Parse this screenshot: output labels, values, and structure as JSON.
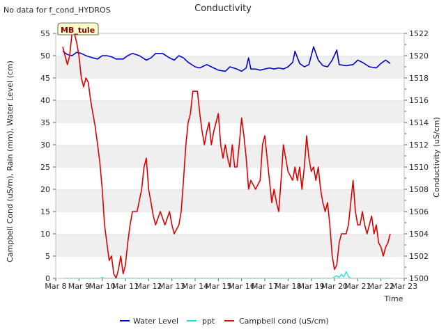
{
  "chart_data": {
    "type": "line",
    "title": "Conductivity",
    "no_data_note": "No data for f_cond_HYDROS",
    "site_badge": "MB_tule",
    "xlabel": "Time",
    "ylabel_left": "Campbell Cond (uS/m), Rain (mm), Water Level (cm)",
    "ylabel_right": "Conductivity (uS/cm)",
    "x_range": [
      8,
      23
    ],
    "x_ticks": [
      {
        "v": 8,
        "label": "Mar 8"
      },
      {
        "v": 9,
        "label": "Mar 9"
      },
      {
        "v": 10,
        "label": "Mar 10"
      },
      {
        "v": 11,
        "label": "Mar 11"
      },
      {
        "v": 12,
        "label": "Mar 12"
      },
      {
        "v": 13,
        "label": "Mar 13"
      },
      {
        "v": 14,
        "label": "Mar 14"
      },
      {
        "v": 15,
        "label": "Mar 15"
      },
      {
        "v": 16,
        "label": "Mar 16"
      },
      {
        "v": 17,
        "label": "Mar 17"
      },
      {
        "v": 18,
        "label": "Mar 18"
      },
      {
        "v": 19,
        "label": "Mar 19"
      },
      {
        "v": 20,
        "label": "Mar 20"
      },
      {
        "v": 21,
        "label": "Mar 21"
      },
      {
        "v": 22,
        "label": "Mar 22"
      },
      {
        "v": 23,
        "label": "Mar 23"
      }
    ],
    "ylim_left": [
      0,
      55
    ],
    "y_ticks_left": [
      0,
      5,
      10,
      15,
      20,
      25,
      30,
      35,
      40,
      45,
      50,
      55
    ],
    "ylim_right": [
      1500,
      1522
    ],
    "y_ticks_right": [
      1500,
      1502,
      1504,
      1506,
      1508,
      1510,
      1512,
      1514,
      1516,
      1518,
      1520,
      1522
    ],
    "grid": "horizontal bands",
    "legend_position": "bottom-center",
    "series": [
      {
        "name": "Water Level",
        "color": "#0000cc",
        "axis": "right",
        "points": [
          [
            8.3,
            1520.4
          ],
          [
            8.5,
            1520.1
          ],
          [
            8.7,
            1520.0
          ],
          [
            8.9,
            1520.3
          ],
          [
            9.1,
            1520.2
          ],
          [
            9.3,
            1520.0
          ],
          [
            9.6,
            1519.8
          ],
          [
            9.8,
            1519.7
          ],
          [
            10.0,
            1520.0
          ],
          [
            10.2,
            1520.0
          ],
          [
            10.4,
            1519.9
          ],
          [
            10.6,
            1519.7
          ],
          [
            10.9,
            1519.7
          ],
          [
            11.1,
            1520.0
          ],
          [
            11.3,
            1520.2
          ],
          [
            11.6,
            1520.0
          ],
          [
            11.9,
            1519.6
          ],
          [
            12.1,
            1519.8
          ],
          [
            12.3,
            1520.2
          ],
          [
            12.6,
            1520.2
          ],
          [
            12.9,
            1519.8
          ],
          [
            13.1,
            1519.6
          ],
          [
            13.3,
            1520.0
          ],
          [
            13.5,
            1519.8
          ],
          [
            13.7,
            1519.4
          ],
          [
            14.0,
            1519.0
          ],
          [
            14.2,
            1518.9
          ],
          [
            14.5,
            1519.2
          ],
          [
            14.7,
            1519.0
          ],
          [
            15.0,
            1518.7
          ],
          [
            15.3,
            1518.6
          ],
          [
            15.5,
            1519.0
          ],
          [
            15.8,
            1518.8
          ],
          [
            16.0,
            1518.6
          ],
          [
            16.2,
            1518.9
          ],
          [
            16.3,
            1519.8
          ],
          [
            16.4,
            1518.8
          ],
          [
            16.6,
            1518.8
          ],
          [
            16.8,
            1518.7
          ],
          [
            17.0,
            1518.8
          ],
          [
            17.2,
            1518.9
          ],
          [
            17.4,
            1518.8
          ],
          [
            17.6,
            1518.9
          ],
          [
            17.8,
            1518.8
          ],
          [
            18.0,
            1519.0
          ],
          [
            18.2,
            1519.4
          ],
          [
            18.3,
            1520.4
          ],
          [
            18.5,
            1519.3
          ],
          [
            18.7,
            1519.0
          ],
          [
            18.9,
            1519.2
          ],
          [
            19.1,
            1520.8
          ],
          [
            19.3,
            1519.6
          ],
          [
            19.5,
            1519.1
          ],
          [
            19.7,
            1519.0
          ],
          [
            19.9,
            1519.6
          ],
          [
            20.1,
            1520.5
          ],
          [
            20.2,
            1519.2
          ],
          [
            20.5,
            1519.1
          ],
          [
            20.8,
            1519.2
          ],
          [
            21.0,
            1519.6
          ],
          [
            21.2,
            1519.4
          ],
          [
            21.5,
            1519.0
          ],
          [
            21.8,
            1518.9
          ],
          [
            22.0,
            1519.3
          ],
          [
            22.2,
            1519.6
          ],
          [
            22.4,
            1519.3
          ]
        ]
      },
      {
        "name": "ppt",
        "color": "#00e5e5",
        "axis": "left",
        "points": [
          [
            8.3,
            0
          ],
          [
            9.9,
            0
          ],
          [
            10.0,
            0.2
          ],
          [
            10.1,
            0
          ],
          [
            19.9,
            0
          ],
          [
            20.1,
            0.6
          ],
          [
            20.2,
            0.2
          ],
          [
            20.3,
            0.9
          ],
          [
            20.4,
            0.3
          ],
          [
            20.5,
            1.5
          ],
          [
            20.6,
            0.4
          ],
          [
            20.7,
            0
          ],
          [
            22.4,
            0
          ]
        ]
      },
      {
        "name": "Campbell cond (uS/cm)",
        "color": "#dd0000",
        "axis": "left",
        "points": [
          [
            8.3,
            52
          ],
          [
            8.4,
            50
          ],
          [
            8.5,
            48
          ],
          [
            8.6,
            50
          ],
          [
            8.7,
            55
          ],
          [
            8.8,
            55
          ],
          [
            8.9,
            53
          ],
          [
            9.0,
            50
          ],
          [
            9.1,
            45
          ],
          [
            9.2,
            43
          ],
          [
            9.3,
            45
          ],
          [
            9.4,
            44
          ],
          [
            9.5,
            40
          ],
          [
            9.6,
            37
          ],
          [
            9.7,
            34
          ],
          [
            9.8,
            30
          ],
          [
            9.9,
            26
          ],
          [
            10.0,
            20
          ],
          [
            10.1,
            12
          ],
          [
            10.2,
            8
          ],
          [
            10.3,
            4
          ],
          [
            10.4,
            5
          ],
          [
            10.5,
            1
          ],
          [
            10.6,
            0
          ],
          [
            10.7,
            2
          ],
          [
            10.8,
            5
          ],
          [
            10.9,
            1
          ],
          [
            11.0,
            3
          ],
          [
            11.1,
            8
          ],
          [
            11.2,
            12
          ],
          [
            11.3,
            15
          ],
          [
            11.5,
            15
          ],
          [
            11.7,
            20
          ],
          [
            11.8,
            25
          ],
          [
            11.9,
            27
          ],
          [
            12.0,
            20
          ],
          [
            12.1,
            17
          ],
          [
            12.2,
            14
          ],
          [
            12.3,
            12
          ],
          [
            12.5,
            15
          ],
          [
            12.7,
            12
          ],
          [
            12.9,
            15
          ],
          [
            13.0,
            12
          ],
          [
            13.1,
            10
          ],
          [
            13.3,
            12
          ],
          [
            13.4,
            15
          ],
          [
            13.5,
            22
          ],
          [
            13.6,
            30
          ],
          [
            13.7,
            35
          ],
          [
            13.8,
            37
          ],
          [
            13.9,
            42
          ],
          [
            14.1,
            42
          ],
          [
            14.2,
            37
          ],
          [
            14.3,
            33
          ],
          [
            14.4,
            30
          ],
          [
            14.5,
            33
          ],
          [
            14.6,
            35
          ],
          [
            14.7,
            30
          ],
          [
            14.8,
            33
          ],
          [
            14.9,
            35
          ],
          [
            15.0,
            37
          ],
          [
            15.1,
            30
          ],
          [
            15.2,
            27
          ],
          [
            15.3,
            30
          ],
          [
            15.4,
            27
          ],
          [
            15.5,
            25
          ],
          [
            15.6,
            30
          ],
          [
            15.7,
            25
          ],
          [
            15.8,
            25
          ],
          [
            15.9,
            30
          ],
          [
            16.0,
            36
          ],
          [
            16.1,
            32
          ],
          [
            16.2,
            27
          ],
          [
            16.3,
            20
          ],
          [
            16.4,
            22
          ],
          [
            16.6,
            20
          ],
          [
            16.8,
            22
          ],
          [
            16.9,
            30
          ],
          [
            17.0,
            32
          ],
          [
            17.1,
            27
          ],
          [
            17.2,
            22
          ],
          [
            17.3,
            17
          ],
          [
            17.4,
            20
          ],
          [
            17.5,
            17
          ],
          [
            17.6,
            15
          ],
          [
            17.7,
            22
          ],
          [
            17.8,
            30
          ],
          [
            17.9,
            27
          ],
          [
            18.0,
            24
          ],
          [
            18.2,
            22
          ],
          [
            18.3,
            25
          ],
          [
            18.4,
            22
          ],
          [
            18.5,
            25
          ],
          [
            18.6,
            20
          ],
          [
            18.7,
            25
          ],
          [
            18.8,
            32
          ],
          [
            18.9,
            27
          ],
          [
            19.0,
            24
          ],
          [
            19.1,
            25
          ],
          [
            19.2,
            22
          ],
          [
            19.3,
            25
          ],
          [
            19.4,
            20
          ],
          [
            19.5,
            17
          ],
          [
            19.6,
            15
          ],
          [
            19.7,
            17
          ],
          [
            19.8,
            12
          ],
          [
            19.9,
            5
          ],
          [
            20.0,
            2
          ],
          [
            20.1,
            3
          ],
          [
            20.2,
            8
          ],
          [
            20.3,
            10
          ],
          [
            20.5,
            10
          ],
          [
            20.6,
            12
          ],
          [
            20.7,
            17
          ],
          [
            20.8,
            22
          ],
          [
            20.9,
            15
          ],
          [
            21.0,
            12
          ],
          [
            21.1,
            12
          ],
          [
            21.2,
            15
          ],
          [
            21.3,
            12
          ],
          [
            21.4,
            10
          ],
          [
            21.5,
            12
          ],
          [
            21.6,
            14
          ],
          [
            21.7,
            10
          ],
          [
            21.8,
            12
          ],
          [
            21.9,
            8
          ],
          [
            22.0,
            7
          ],
          [
            22.1,
            5
          ],
          [
            22.2,
            7
          ],
          [
            22.3,
            8
          ],
          [
            22.4,
            10
          ]
        ]
      }
    ]
  }
}
